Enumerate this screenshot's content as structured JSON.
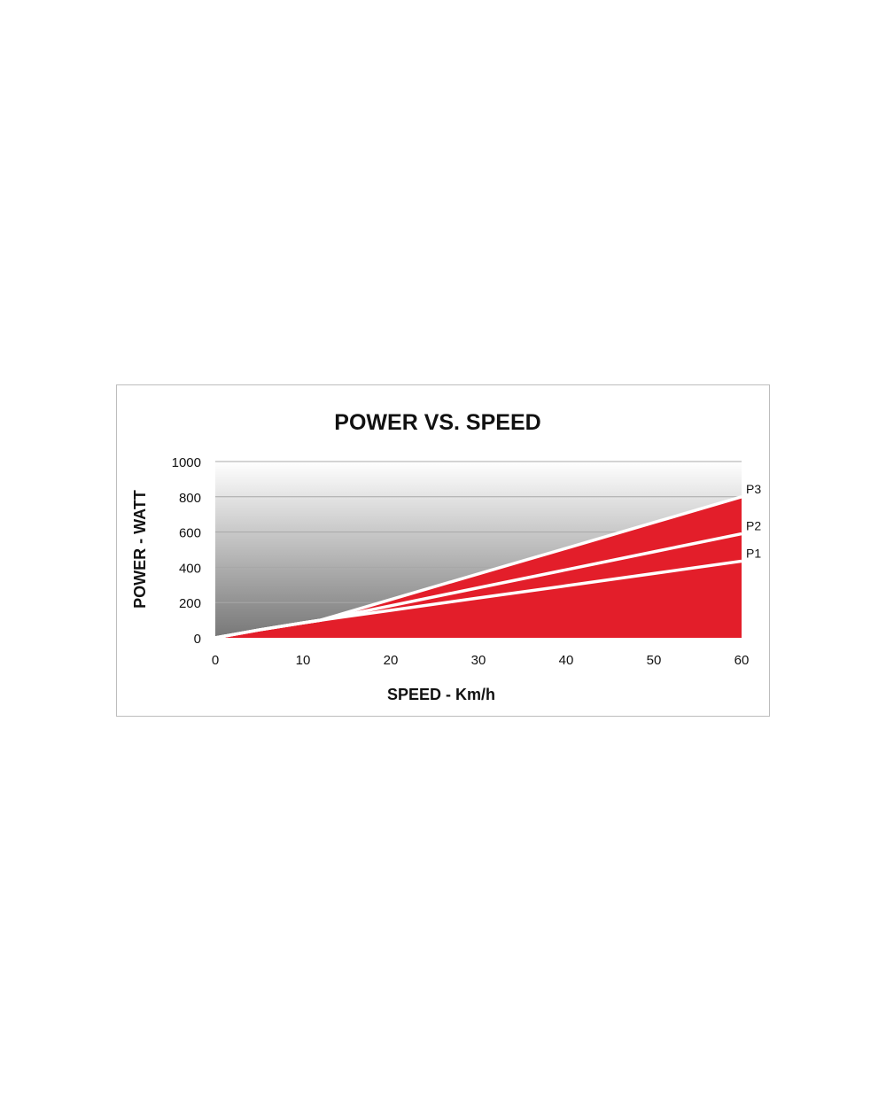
{
  "chart_data": {
    "type": "area",
    "title": "POWER VS. SPEED",
    "xlabel": "SPEED - Km/h",
    "ylabel": "POWER - WATT",
    "xlim": [
      0,
      60
    ],
    "ylim": [
      0,
      1000
    ],
    "xticks": [
      0,
      10,
      20,
      30,
      40,
      50,
      60
    ],
    "yticks": [
      0,
      200,
      400,
      600,
      800,
      1000
    ],
    "grid": true,
    "x": [
      0,
      5,
      10,
      12,
      20,
      30,
      40,
      50,
      60
    ],
    "series": [
      {
        "name": "P3",
        "values": [
          0,
          45,
          85,
          100,
          217,
          363,
          508,
          654,
          800
        ]
      },
      {
        "name": "P2",
        "values": [
          0,
          45,
          85,
          100,
          182,
          284,
          386,
          488,
          590
        ]
      },
      {
        "name": "P1",
        "values": [
          0,
          45,
          85,
          100,
          156,
          226,
          295,
          365,
          435
        ]
      }
    ],
    "colors": {
      "fill": "#e31e2a",
      "line": "#ffffff",
      "background_top": "#ffffff",
      "background_bottom": "#777777",
      "grid": "#a8a8a8"
    }
  }
}
